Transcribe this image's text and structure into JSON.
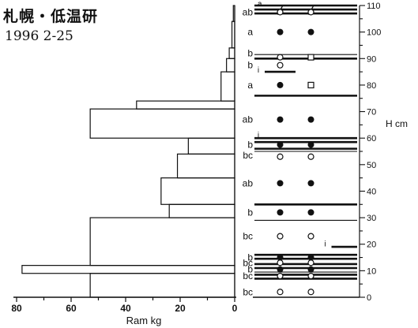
{
  "header": {
    "title": "札幌・低温研",
    "date": "1996 2-25"
  },
  "chart_data": {
    "type": "bar",
    "ram": {
      "xlabel": "Ram kg",
      "xticks": [
        80,
        60,
        40,
        20,
        0
      ],
      "xlim": [
        0,
        80
      ],
      "bars": [
        {
          "bottom": 0,
          "top": 9,
          "value": 53
        },
        {
          "bottom": 9,
          "top": 12,
          "value": 78
        },
        {
          "bottom": 12,
          "top": 30,
          "value": 53
        },
        {
          "bottom": 30,
          "top": 35,
          "value": 24
        },
        {
          "bottom": 35,
          "top": 45,
          "value": 27
        },
        {
          "bottom": 45,
          "top": 54,
          "value": 21
        },
        {
          "bottom": 54,
          "top": 60,
          "value": 17
        },
        {
          "bottom": 60,
          "top": 71,
          "value": 53
        },
        {
          "bottom": 71,
          "top": 74,
          "value": 36
        },
        {
          "bottom": 74,
          "top": 85,
          "value": 5
        },
        {
          "bottom": 85,
          "top": 90,
          "value": 3
        },
        {
          "bottom": 90,
          "top": 94,
          "value": 2
        },
        {
          "bottom": 94,
          "top": 104,
          "value": 1
        },
        {
          "bottom": 104,
          "top": 110,
          "value": 0.5
        }
      ]
    },
    "profile": {
      "ylabel": "H cm",
      "ylim": [
        0,
        110
      ],
      "yticks": [
        0,
        10,
        20,
        30,
        40,
        50,
        60,
        70,
        80,
        90,
        100,
        110
      ],
      "thick_lines": [
        {
          "y": 110,
          "from": 0,
          "to": 1
        },
        {
          "y": 108.5,
          "from": 0,
          "to": 1
        },
        {
          "y": 107,
          "from": 0,
          "to": 1
        },
        {
          "y": 90,
          "from": 0,
          "to": 1
        },
        {
          "y": 85,
          "from": 0.1,
          "to": 0.4
        },
        {
          "y": 76,
          "from": 0,
          "to": 1
        },
        {
          "y": 60,
          "from": 0,
          "to": 1
        },
        {
          "y": 58.5,
          "from": 0,
          "to": 1
        },
        {
          "y": 56,
          "from": 0,
          "to": 1
        },
        {
          "y": 35,
          "from": 0,
          "to": 1
        },
        {
          "y": 19,
          "from": 0.75,
          "to": 1
        },
        {
          "y": 16,
          "from": 0,
          "to": 1
        },
        {
          "y": 14.5,
          "from": 0,
          "to": 1
        },
        {
          "y": 12.5,
          "from": 0,
          "to": 1
        },
        {
          "y": 11,
          "from": 0,
          "to": 1
        },
        {
          "y": 8.5,
          "from": 0,
          "to": 1
        },
        {
          "y": 7,
          "from": 0,
          "to": 1
        }
      ],
      "thin_lines": [
        {
          "y": 91.5,
          "from": 0,
          "to": 1
        },
        {
          "y": 55,
          "from": 0,
          "to": 1
        },
        {
          "y": 29,
          "from": 0,
          "to": 1
        },
        {
          "y": 9.5,
          "from": 0,
          "to": 1
        }
      ],
      "layer_labels": [
        {
          "y": 107.5,
          "text": "ab"
        },
        {
          "y": 100,
          "text": "a"
        },
        {
          "y": 92,
          "text": "b"
        },
        {
          "y": 87.5,
          "text": "b"
        },
        {
          "y": 80,
          "text": "a"
        },
        {
          "y": 67,
          "text": "ab"
        },
        {
          "y": 57.5,
          "text": "b"
        },
        {
          "y": 53.5,
          "text": "bc"
        },
        {
          "y": 43,
          "text": "ab"
        },
        {
          "y": 32,
          "text": "b"
        },
        {
          "y": 23,
          "text": "bc"
        },
        {
          "y": 15,
          "text": "b"
        },
        {
          "y": 13,
          "text": "bc"
        },
        {
          "y": 10.5,
          "text": "b"
        },
        {
          "y": 8,
          "text": "bc"
        },
        {
          "y": 2,
          "text": "bc"
        }
      ],
      "ice_labels": [
        {
          "y": 110,
          "x": 0.03,
          "text": "a"
        },
        {
          "y": 85,
          "x": 0.03,
          "text": "i"
        },
        {
          "y": 60.5,
          "x": 0.03,
          "text": "i"
        },
        {
          "y": 19.5,
          "x": 0.68,
          "text": "i"
        }
      ],
      "symbols": [
        {
          "y": 108,
          "x": 0.25,
          "kind": "slash"
        },
        {
          "y": 108,
          "x": 0.55,
          "kind": "slash"
        },
        {
          "y": 107.5,
          "x": 0.25,
          "kind": "open"
        },
        {
          "y": 107.5,
          "x": 0.55,
          "kind": "open"
        },
        {
          "y": 100,
          "x": 0.25,
          "kind": "solid"
        },
        {
          "y": 100,
          "x": 0.55,
          "kind": "solid"
        },
        {
          "y": 90.5,
          "x": 0.25,
          "kind": "open"
        },
        {
          "y": 90.5,
          "x": 0.55,
          "kind": "square"
        },
        {
          "y": 87.5,
          "x": 0.25,
          "kind": "open"
        },
        {
          "y": 80,
          "x": 0.25,
          "kind": "solid"
        },
        {
          "y": 80,
          "x": 0.55,
          "kind": "square"
        },
        {
          "y": 67,
          "x": 0.25,
          "kind": "solid"
        },
        {
          "y": 67,
          "x": 0.55,
          "kind": "solid"
        },
        {
          "y": 57.5,
          "x": 0.25,
          "kind": "solid"
        },
        {
          "y": 57.5,
          "x": 0.55,
          "kind": "solid"
        },
        {
          "y": 53,
          "x": 0.25,
          "kind": "open"
        },
        {
          "y": 53,
          "x": 0.55,
          "kind": "open"
        },
        {
          "y": 43,
          "x": 0.25,
          "kind": "solid"
        },
        {
          "y": 43,
          "x": 0.55,
          "kind": "solid"
        },
        {
          "y": 32,
          "x": 0.25,
          "kind": "solid"
        },
        {
          "y": 32,
          "x": 0.55,
          "kind": "solid"
        },
        {
          "y": 23,
          "x": 0.25,
          "kind": "open"
        },
        {
          "y": 23,
          "x": 0.55,
          "kind": "open"
        },
        {
          "y": 15,
          "x": 0.25,
          "kind": "solid"
        },
        {
          "y": 15,
          "x": 0.55,
          "kind": "solid"
        },
        {
          "y": 13,
          "x": 0.25,
          "kind": "open"
        },
        {
          "y": 13,
          "x": 0.55,
          "kind": "open"
        },
        {
          "y": 10.5,
          "x": 0.25,
          "kind": "solid"
        },
        {
          "y": 10.5,
          "x": 0.55,
          "kind": "solid"
        },
        {
          "y": 8,
          "x": 0.25,
          "kind": "open"
        },
        {
          "y": 8,
          "x": 0.55,
          "kind": "open"
        },
        {
          "y": 2,
          "x": 0.25,
          "kind": "open"
        },
        {
          "y": 2,
          "x": 0.55,
          "kind": "open"
        }
      ]
    }
  }
}
